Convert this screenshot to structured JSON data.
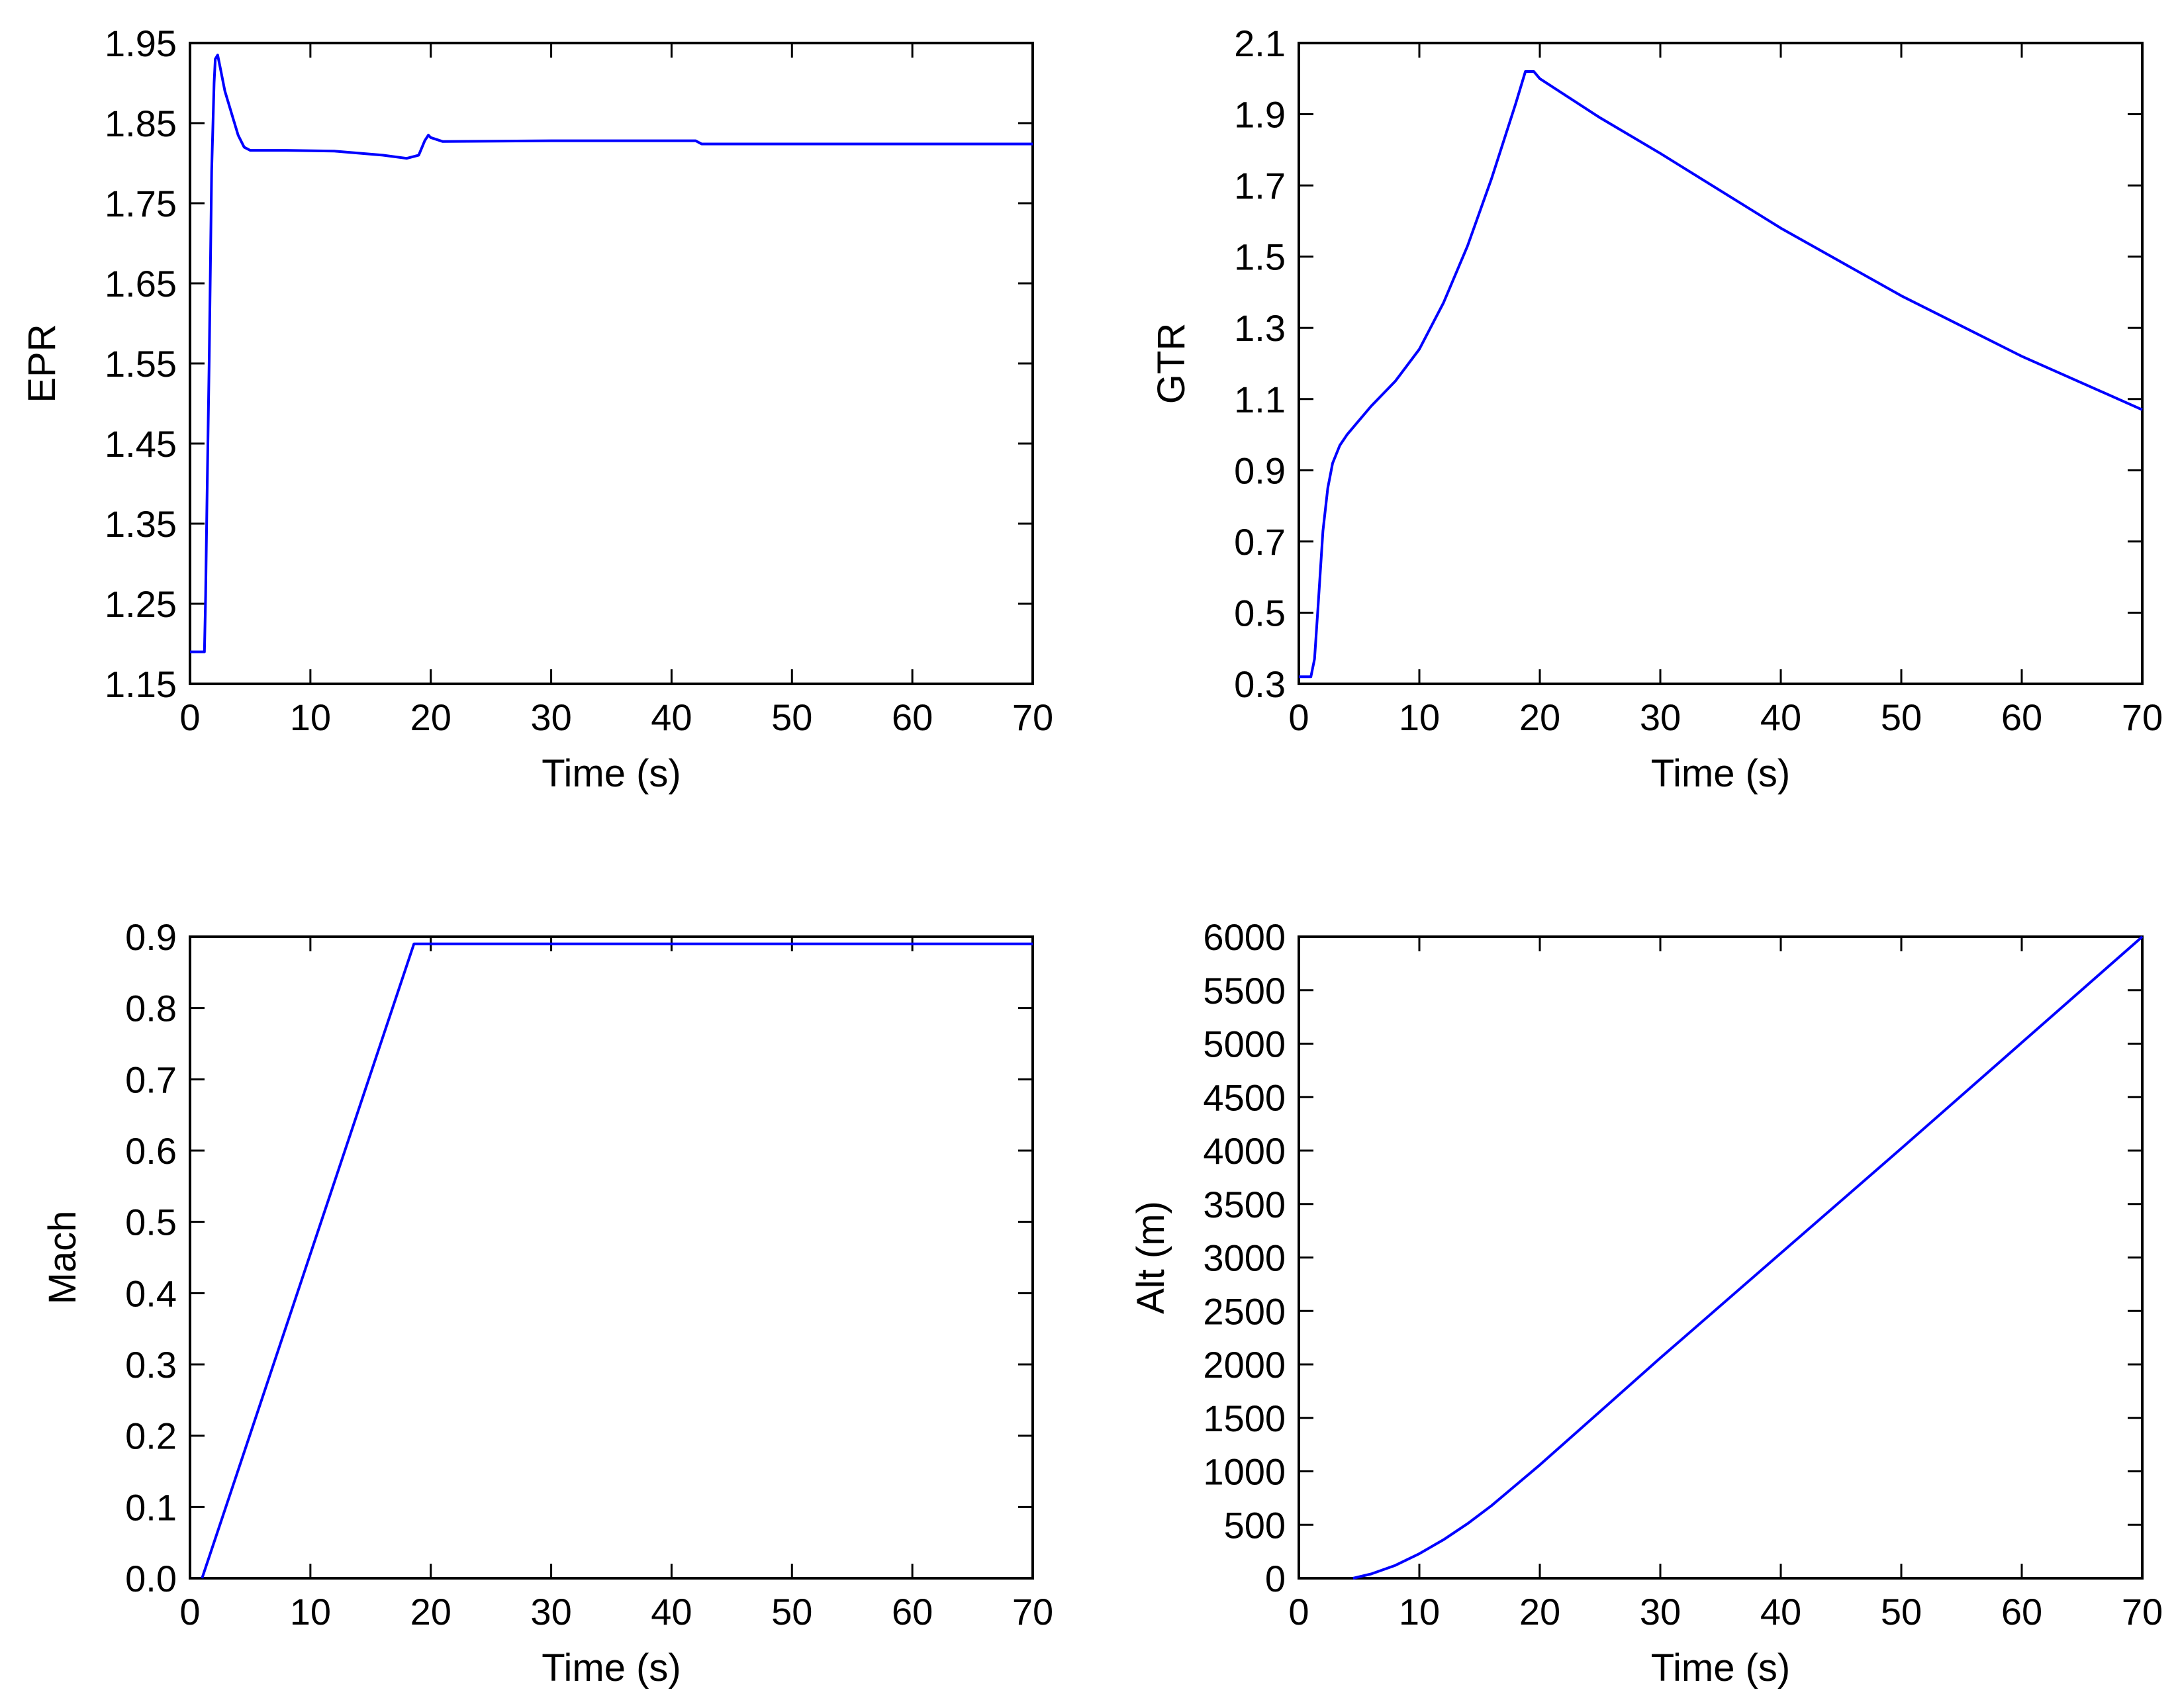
{
  "chart_data": [
    {
      "type": "line",
      "title": "",
      "xlabel": "Time (s)",
      "ylabel": "EPR",
      "xlim": [
        0,
        70
      ],
      "ylim": [
        1.15,
        1.95
      ],
      "xticks": [
        0,
        10,
        20,
        30,
        40,
        50,
        60,
        70
      ],
      "xtick_labels": [
        "0",
        "10",
        "20",
        "30",
        "40",
        "50",
        "60",
        "70"
      ],
      "yticks": [
        1.15,
        1.25,
        1.35,
        1.45,
        1.55,
        1.65,
        1.75,
        1.85,
        1.95
      ],
      "ytick_labels": [
        "1.15",
        "1.25",
        "1.35",
        "1.45",
        "1.55",
        "1.65",
        "1.75",
        "1.85",
        "1.95"
      ],
      "grid": false,
      "series": [
        {
          "name": "EPR",
          "color": "#0000ff",
          "x": [
            0,
            1.2,
            1.3,
            1.4,
            1.6,
            1.8,
            2.0,
            2.1,
            2.3,
            2.5,
            2.9,
            3.5,
            4.0,
            4.5,
            5.0,
            8,
            12,
            16,
            18,
            19.0,
            19.5,
            19.8,
            20,
            21,
            30,
            42,
            42.5,
            70
          ],
          "y": [
            1.19,
            1.19,
            1.26,
            1.37,
            1.56,
            1.79,
            1.9,
            1.93,
            1.935,
            1.92,
            1.89,
            1.86,
            1.835,
            1.82,
            1.816,
            1.816,
            1.815,
            1.81,
            1.806,
            1.81,
            1.828,
            1.835,
            1.832,
            1.827,
            1.828,
            1.828,
            1.824,
            1.824
          ]
        }
      ]
    },
    {
      "type": "line",
      "title": "",
      "xlabel": "Time (s)",
      "ylabel": "GTR",
      "xlim": [
        0,
        70
      ],
      "ylim": [
        0.3,
        2.1
      ],
      "xticks": [
        0,
        10,
        20,
        30,
        40,
        50,
        60,
        70
      ],
      "xtick_labels": [
        "0",
        "10",
        "20",
        "30",
        "40",
        "50",
        "60",
        "70"
      ],
      "yticks": [
        0.3,
        0.5,
        0.7,
        0.9,
        1.1,
        1.3,
        1.5,
        1.7,
        1.9,
        2.1
      ],
      "ytick_labels": [
        "0.3",
        "0.5",
        "0.7",
        "0.9",
        "1.1",
        "1.3",
        "1.5",
        "1.7",
        "1.9",
        "2.1"
      ],
      "grid": false,
      "series": [
        {
          "name": "GTR",
          "color": "#0000ff",
          "x": [
            0,
            1.0,
            1.3,
            1.6,
            2.0,
            2.4,
            2.8,
            3.4,
            4.0,
            5,
            6,
            8,
            10,
            12,
            14,
            16,
            18,
            18.8,
            19.5,
            20,
            25,
            30,
            40,
            50,
            60,
            70
          ],
          "y": [
            0.32,
            0.32,
            0.37,
            0.52,
            0.73,
            0.85,
            0.92,
            0.97,
            1.0,
            1.04,
            1.08,
            1.15,
            1.24,
            1.37,
            1.53,
            1.72,
            1.93,
            2.02,
            2.02,
            2.0,
            1.89,
            1.79,
            1.58,
            1.39,
            1.22,
            1.07
          ]
        }
      ]
    },
    {
      "type": "line",
      "title": "",
      "xlabel": "Time (s)",
      "ylabel": "Mach",
      "xlim": [
        0,
        70
      ],
      "ylim": [
        0.0,
        0.9
      ],
      "xticks": [
        0,
        10,
        20,
        30,
        40,
        50,
        60,
        70
      ],
      "xtick_labels": [
        "0",
        "10",
        "20",
        "30",
        "40",
        "50",
        "60",
        "70"
      ],
      "yticks": [
        0.0,
        0.1,
        0.2,
        0.3,
        0.4,
        0.5,
        0.6,
        0.7,
        0.8,
        0.9
      ],
      "ytick_labels": [
        "0.0",
        "0.1",
        "0.2",
        "0.3",
        "0.4",
        "0.5",
        "0.6",
        "0.7",
        "0.8",
        "0.9"
      ],
      "grid": false,
      "series": [
        {
          "name": "Mach",
          "color": "#0000ff",
          "x": [
            1.0,
            18.6,
            70
          ],
          "y": [
            0.0,
            0.89,
            0.89
          ]
        }
      ]
    },
    {
      "type": "line",
      "title": "",
      "xlabel": "Time (s)",
      "ylabel": "Alt (m)",
      "xlim": [
        0,
        70
      ],
      "ylim": [
        0,
        6000
      ],
      "xticks": [
        0,
        10,
        20,
        30,
        40,
        50,
        60,
        70
      ],
      "xtick_labels": [
        "0",
        "10",
        "20",
        "30",
        "40",
        "50",
        "60",
        "70"
      ],
      "yticks": [
        0,
        500,
        1000,
        1500,
        2000,
        2500,
        3000,
        3500,
        4000,
        4500,
        5000,
        5500,
        6000
      ],
      "ytick_labels": [
        "0",
        "500",
        "1000",
        "1500",
        "2000",
        "2500",
        "3000",
        "3500",
        "4000",
        "4500",
        "5000",
        "5500",
        "6000"
      ],
      "grid": false,
      "series": [
        {
          "name": "Alt (m)",
          "color": "#0000ff",
          "x": [
            4.5,
            6,
            8,
            10,
            12,
            14,
            16,
            18,
            20,
            25,
            30,
            40,
            50,
            60,
            70
          ],
          "y": [
            0,
            40,
            120,
            230,
            360,
            510,
            680,
            870,
            1060,
            1560,
            2060,
            3040,
            4020,
            5010,
            6000
          ]
        }
      ]
    }
  ]
}
